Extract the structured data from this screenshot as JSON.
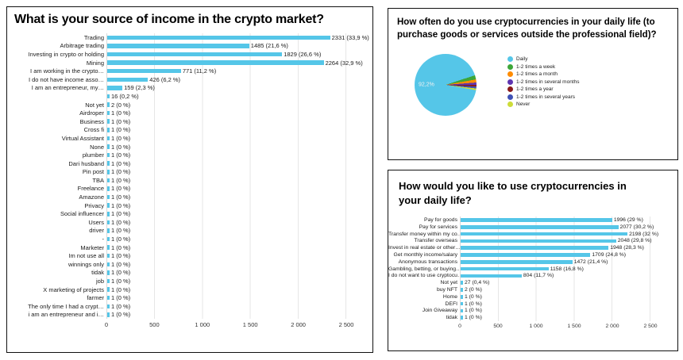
{
  "colors": {
    "bar": "#55C6E8",
    "grid": "#e6e6e6",
    "panel_border": "#111111"
  },
  "chart_data": [
    {
      "id": "income-source",
      "type": "bar",
      "title": "What is your source of income in the crypto market?",
      "xlabel": "",
      "ylabel": "",
      "xlim": [
        0,
        2500
      ],
      "xticks": [
        "0",
        "500",
        "1 000",
        "1 500",
        "2 000",
        "2 500"
      ],
      "rows": [
        {
          "label": "Trading",
          "value": 2331,
          "value_label": "2331 (33,9 %)"
        },
        {
          "label": "Arbitrage trading",
          "value": 1485,
          "value_label": "1485 (21,6 %)"
        },
        {
          "label": "Investing in crypto or holding",
          "value": 1829,
          "value_label": "1829 (26,6 %)"
        },
        {
          "label": "Mining",
          "value": 2264,
          "value_label": "2264 (32,9 %)"
        },
        {
          "label": "I am working in the crypto…",
          "value": 771,
          "value_label": "771 (11,2 %)"
        },
        {
          "label": "I do not have income asso…",
          "value": 426,
          "value_label": "426 (6,2 %)"
        },
        {
          "label": "I am an entrepreneur, my…",
          "value": 159,
          "value_label": "159 (2,3 %)"
        },
        {
          "label": "",
          "value": 16,
          "value_label": "16 (0,2 %)"
        },
        {
          "label": "Not yet",
          "value": 2,
          "value_label": "2 (0 %)"
        },
        {
          "label": "Airdroper",
          "value": 1,
          "value_label": "1 (0 %)"
        },
        {
          "label": "Business",
          "value": 1,
          "value_label": "1 (0 %)"
        },
        {
          "label": "Cross fi",
          "value": 1,
          "value_label": "1 (0 %)"
        },
        {
          "label": "Virtual Assistant",
          "value": 1,
          "value_label": "1 (0 %)"
        },
        {
          "label": "None",
          "value": 1,
          "value_label": "1 (0 %)"
        },
        {
          "label": "plumber",
          "value": 1,
          "value_label": "1 (0 %)"
        },
        {
          "label": "Dari husband",
          "value": 1,
          "value_label": "1 (0 %)"
        },
        {
          "label": "Pin post",
          "value": 1,
          "value_label": "1 (0 %)"
        },
        {
          "label": "TBA",
          "value": 1,
          "value_label": "1 (0 %)"
        },
        {
          "label": "Freelance",
          "value": 1,
          "value_label": "1 (0 %)"
        },
        {
          "label": "Amazone",
          "value": 1,
          "value_label": "1 (0 %)"
        },
        {
          "label": "Privacy",
          "value": 1,
          "value_label": "1 (0 %)"
        },
        {
          "label": "Social influencer",
          "value": 1,
          "value_label": "1 (0 %)"
        },
        {
          "label": "Users",
          "value": 1,
          "value_label": "1 (0 %)"
        },
        {
          "label": "driver",
          "value": 1,
          "value_label": "1 (0 %)"
        },
        {
          "label": "-",
          "value": 1,
          "value_label": "1 (0 %)"
        },
        {
          "label": "Marketer",
          "value": 1,
          "value_label": "1 (0 %)"
        },
        {
          "label": "Im not use all",
          "value": 1,
          "value_label": "1 (0 %)"
        },
        {
          "label": "winnings only",
          "value": 1,
          "value_label": "1 (0 %)"
        },
        {
          "label": "tidak",
          "value": 1,
          "value_label": "1 (0 %)"
        },
        {
          "label": "job",
          "value": 1,
          "value_label": "1 (0 %)"
        },
        {
          "label": "X marketing of projects",
          "value": 1,
          "value_label": "1 (0 %)"
        },
        {
          "label": "farmer",
          "value": 1,
          "value_label": "1 (0 %)"
        },
        {
          "label": "The only time I had a crypt…",
          "value": 1,
          "value_label": "1 (0 %)"
        },
        {
          "label": "i am an entrepreneur and i…",
          "value": 1,
          "value_label": "1 (0 %)"
        }
      ]
    },
    {
      "id": "usage-frequency",
      "type": "pie",
      "title": "How often do you use cryptocurrencies in your daily life (to purchase goods or services outside the professional field)?",
      "big_slice_label": "92,2%",
      "legend_position": "right",
      "slices": [
        {
          "label": "Daily",
          "pct": 92.2,
          "color": "#55C6E8"
        },
        {
          "label": "1-2 times a week",
          "pct": 2.2,
          "color": "#3DA639"
        },
        {
          "label": "1-2 times a month",
          "pct": 1.6,
          "color": "#FF8C00"
        },
        {
          "label": "1-2 times in several months",
          "pct": 1.2,
          "color": "#5E35B1"
        },
        {
          "label": "1-2 times a year",
          "pct": 0.9,
          "color": "#8B1A1A"
        },
        {
          "label": "1-2 times in several years",
          "pct": 1.0,
          "color": "#3F51B5"
        },
        {
          "label": "Never",
          "pct": 0.9,
          "color": "#CDDC39"
        }
      ]
    },
    {
      "id": "desired-daily-use",
      "type": "bar",
      "title": "How would you like to use cryptocurrencies in your daily life?",
      "xlabel": "",
      "ylabel": "",
      "xlim": [
        0,
        2500
      ],
      "xticks": [
        "0",
        "500",
        "1 000",
        "1 500",
        "2 000",
        "2 500"
      ],
      "rows": [
        {
          "label": "Pay for goods",
          "value": 1996,
          "value_label": "1996 (29 %)"
        },
        {
          "label": "Pay for services",
          "value": 2077,
          "value_label": "2077 (30,2 %)"
        },
        {
          "label": "Transfer money within my co…",
          "value": 2198,
          "value_label": "2198 (32 %)"
        },
        {
          "label": "Transfer overseas",
          "value": 2048,
          "value_label": "2048 (29,8 %)"
        },
        {
          "label": "Invest in real estate or other…",
          "value": 1948,
          "value_label": "1948 (28,3 %)"
        },
        {
          "label": "Get monthly income/salary",
          "value": 1709,
          "value_label": "1709 (24,8 %)"
        },
        {
          "label": "Anonymous transactions",
          "value": 1472,
          "value_label": "1472 (21,4 %)"
        },
        {
          "label": "Gambling, betting, or buying…",
          "value": 1158,
          "value_label": "1158 (16,8 %)"
        },
        {
          "label": "I do not want to use cryptocu…",
          "value": 804,
          "value_label": "804 (11,7 %)"
        },
        {
          "label": "Not yet",
          "value": 27,
          "value_label": "27 (0,4 %)"
        },
        {
          "label": "buy NFT",
          "value": 2,
          "value_label": "2 (0 %)"
        },
        {
          "label": "Home",
          "value": 1,
          "value_label": "1 (0 %)"
        },
        {
          "label": "DEFI",
          "value": 1,
          "value_label": "1 (0 %)"
        },
        {
          "label": "Join Giveaway",
          "value": 1,
          "value_label": "1 (0 %)"
        },
        {
          "label": "tidak",
          "value": 1,
          "value_label": "1 (0 %)"
        }
      ]
    }
  ]
}
